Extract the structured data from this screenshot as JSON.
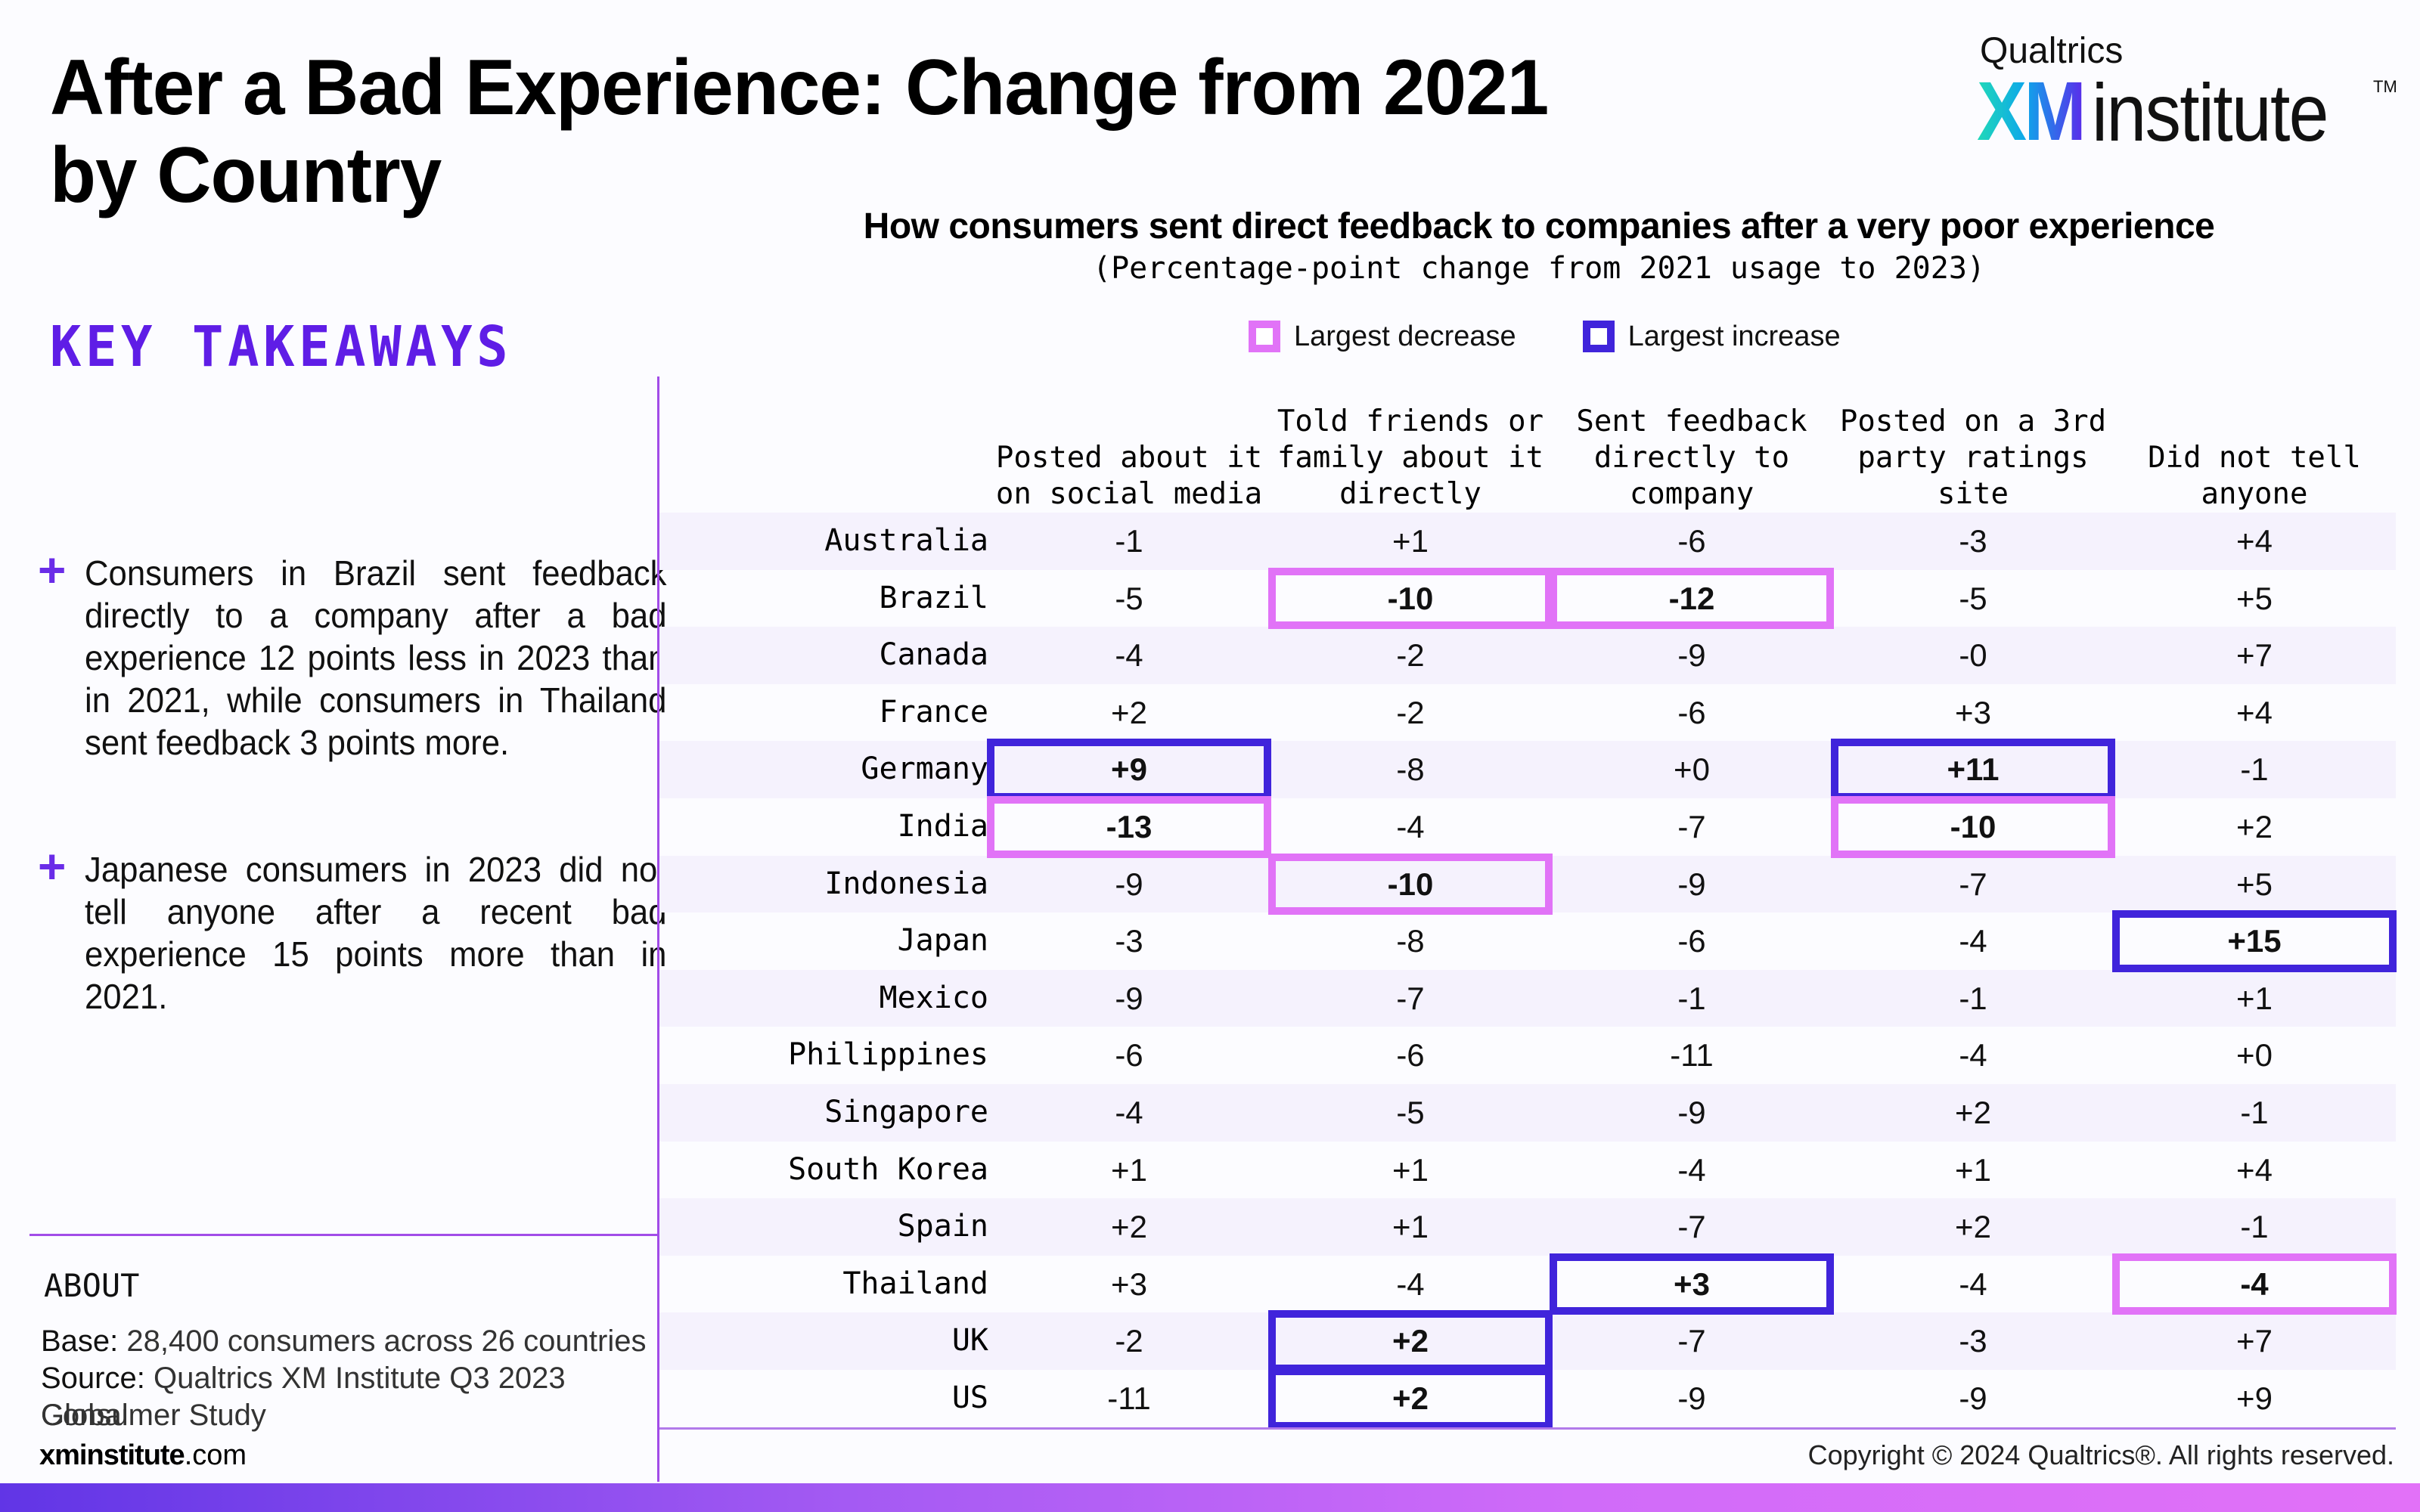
{
  "page": {
    "title_line1": "After a Bad Experience: Change from 2021",
    "title_line2": "by Country"
  },
  "logo": {
    "top": "Qualtrics",
    "xm": "XM",
    "institute": "institute",
    "tm": "TM"
  },
  "sidebar": {
    "heading": "KEY TAKEAWAYS",
    "takeaways": [
      {
        "icon": "plus-icon",
        "text": "Consumers in Brazil sent feedback directly to a company after a bad experience 12 points less in 2023 than in 2021, while consumers in Thailand sent feedback 3 points more."
      },
      {
        "icon": "plus-icon",
        "text": "Japanese consumers in 2023 did not tell anyone after a recent bad experience 15 points more than in 2021."
      }
    ],
    "about": {
      "heading": "ABOUT",
      "base_label": "Base:",
      "base_value": "28,400 consumers across 26 countries",
      "source_label": "Source:",
      "source_value_1": "Qualtrics XM Institute Q3 2023 Global",
      "source_value_2": "Consumer Study"
    },
    "site_bold": "xminstitute",
    "site_rest": ".com"
  },
  "footer": {
    "copyright": "Copyright © 2024 Qualtrics®. All rights reserved."
  },
  "colors": {
    "accent": "#5F1DE6",
    "largest_decrease": "#E173F7",
    "largest_increase": "#4024DB",
    "row_stripe": "#F5F2FD",
    "divider": "#A24CE8"
  },
  "chart_data": {
    "type": "table",
    "title": "How consumers sent direct feedback to companies after a very poor experience",
    "subtitle": "(Percentage-point change from 2021 usage to 2023)",
    "legend": [
      {
        "key": "decrease",
        "label": "Largest decrease",
        "color": "#E173F7"
      },
      {
        "key": "increase",
        "label": "Largest increase",
        "color": "#4024DB"
      }
    ],
    "columns": [
      "Posted about it\non social media",
      "Told friends or\nfamily about it\ndirectly",
      "Sent feedback\ndirectly to\ncompany",
      "Posted on a 3rd\nparty ratings\nsite",
      "Did not tell\nanyone"
    ],
    "rows": [
      {
        "country": "Australia",
        "values": [
          "-1",
          "+1",
          "-6",
          "-3",
          "+4"
        ],
        "highlights": [
          null,
          null,
          null,
          null,
          null
        ]
      },
      {
        "country": "Brazil",
        "values": [
          "-5",
          "-10",
          "-12",
          "-5",
          "+5"
        ],
        "highlights": [
          null,
          "decrease",
          "decrease",
          null,
          null
        ]
      },
      {
        "country": "Canada",
        "values": [
          "-4",
          "-2",
          "-9",
          "-0",
          "+7"
        ],
        "highlights": [
          null,
          null,
          null,
          null,
          null
        ]
      },
      {
        "country": "France",
        "values": [
          "+2",
          "-2",
          "-6",
          "+3",
          "+4"
        ],
        "highlights": [
          null,
          null,
          null,
          null,
          null
        ]
      },
      {
        "country": "Germany",
        "values": [
          "+9",
          "-8",
          "+0",
          "+11",
          "-1"
        ],
        "highlights": [
          "increase",
          null,
          null,
          "increase",
          null
        ]
      },
      {
        "country": "India",
        "values": [
          "-13",
          "-4",
          "-7",
          "-10",
          "+2"
        ],
        "highlights": [
          "decrease",
          null,
          null,
          "decrease",
          null
        ]
      },
      {
        "country": "Indonesia",
        "values": [
          "-9",
          "-10",
          "-9",
          "-7",
          "+5"
        ],
        "highlights": [
          null,
          "decrease",
          null,
          null,
          null
        ]
      },
      {
        "country": "Japan",
        "values": [
          "-3",
          "-8",
          "-6",
          "-4",
          "+15"
        ],
        "highlights": [
          null,
          null,
          null,
          null,
          "increase"
        ]
      },
      {
        "country": "Mexico",
        "values": [
          "-9",
          "-7",
          "-1",
          "-1",
          "+1"
        ],
        "highlights": [
          null,
          null,
          null,
          null,
          null
        ]
      },
      {
        "country": "Philippines",
        "values": [
          "-6",
          "-6",
          "-11",
          "-4",
          "+0"
        ],
        "highlights": [
          null,
          null,
          null,
          null,
          null
        ]
      },
      {
        "country": "Singapore",
        "values": [
          "-4",
          "-5",
          "-9",
          "+2",
          "-1"
        ],
        "highlights": [
          null,
          null,
          null,
          null,
          null
        ]
      },
      {
        "country": "South Korea",
        "values": [
          "+1",
          "+1",
          "-4",
          "+1",
          "+4"
        ],
        "highlights": [
          null,
          null,
          null,
          null,
          null
        ]
      },
      {
        "country": "Spain",
        "values": [
          "+2",
          "+1",
          "-7",
          "+2",
          "-1"
        ],
        "highlights": [
          null,
          null,
          null,
          null,
          null
        ]
      },
      {
        "country": "Thailand",
        "values": [
          "+3",
          "-4",
          "+3",
          "-4",
          "-4"
        ],
        "highlights": [
          null,
          null,
          "increase",
          null,
          "decrease"
        ]
      },
      {
        "country": "UK",
        "values": [
          "-2",
          "+2",
          "-7",
          "-3",
          "+7"
        ],
        "highlights": [
          null,
          "increase",
          null,
          null,
          null
        ]
      },
      {
        "country": "US",
        "values": [
          "-11",
          "+2",
          "-9",
          "-9",
          "+9"
        ],
        "highlights": [
          null,
          "increase",
          null,
          null,
          null
        ]
      }
    ]
  }
}
